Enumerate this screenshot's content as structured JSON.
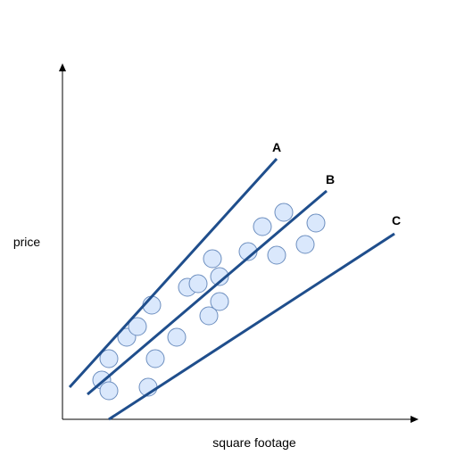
{
  "axes": {
    "x_label": "square footage",
    "y_label": "price"
  },
  "lines": [
    {
      "label": "A"
    },
    {
      "label": "B"
    },
    {
      "label": "C"
    }
  ],
  "colors": {
    "line": "#1f4e8c",
    "point_fill": "#dae8fc",
    "point_stroke": "#6c8ebf",
    "axis": "#000000"
  },
  "chart_data": {
    "type": "scatter",
    "title": "",
    "xlabel": "square footage",
    "ylabel": "price",
    "points": [
      {
        "x": 11,
        "y": 11
      },
      {
        "x": 13,
        "y": 8
      },
      {
        "x": 13,
        "y": 17
      },
      {
        "x": 18,
        "y": 23
      },
      {
        "x": 21,
        "y": 26
      },
      {
        "x": 25,
        "y": 32
      },
      {
        "x": 24,
        "y": 9
      },
      {
        "x": 26,
        "y": 17
      },
      {
        "x": 32,
        "y": 23
      },
      {
        "x": 35,
        "y": 37
      },
      {
        "x": 38,
        "y": 38
      },
      {
        "x": 41,
        "y": 29
      },
      {
        "x": 42,
        "y": 45
      },
      {
        "x": 44,
        "y": 33
      },
      {
        "x": 44,
        "y": 40
      },
      {
        "x": 52,
        "y": 47
      },
      {
        "x": 56,
        "y": 54
      },
      {
        "x": 60,
        "y": 46
      },
      {
        "x": 62,
        "y": 58
      },
      {
        "x": 68,
        "y": 49
      },
      {
        "x": 71,
        "y": 55
      }
    ],
    "lines": [
      {
        "label": "A",
        "from": [
          2,
          9
        ],
        "to": [
          60,
          73
        ]
      },
      {
        "label": "B",
        "from": [
          7,
          7
        ],
        "to": [
          74,
          64
        ]
      },
      {
        "label": "C",
        "from": [
          13,
          0
        ],
        "to": [
          93,
          52
        ]
      }
    ],
    "xlim": [
      0,
      100
    ],
    "ylim": [
      0,
      78
    ],
    "grid": false,
    "legend": "none"
  }
}
